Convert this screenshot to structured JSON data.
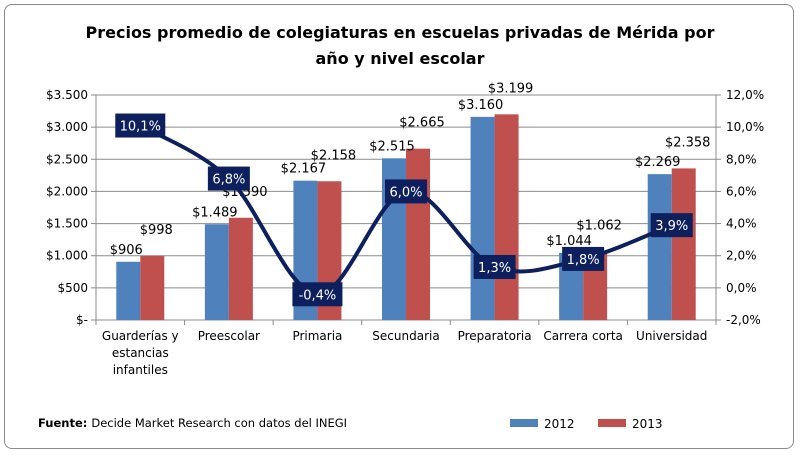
{
  "chart_data": {
    "type": "bar",
    "title": "Precios promedio de colegiaturas en escuelas privadas de Mérida por año y nivel escolar",
    "title_lines": [
      "Precios promedio de colegiaturas en escuelas privadas de Mérida por",
      "año y nivel escolar"
    ],
    "categories": [
      "Guarderías y estancias infantiles",
      "Preescolar",
      "Primaria",
      "Secundaria",
      "Preparatoria",
      "Carrera corta",
      "Universidad"
    ],
    "category_lines": [
      [
        "Guarderías y",
        "estancias",
        "infantiles"
      ],
      [
        "Preescolar"
      ],
      [
        "Primaria"
      ],
      [
        "Secundaria"
      ],
      [
        "Preparatoria"
      ],
      [
        "Carrera corta"
      ],
      [
        "Universidad"
      ]
    ],
    "series": [
      {
        "name": "2012",
        "type": "bar",
        "axis": "left",
        "color": "#4f81bd",
        "values": [
          906,
          1489,
          2167,
          2515,
          3160,
          1044,
          2269
        ],
        "labels": [
          "$906",
          "$1.489",
          "$2.167",
          "$2.515",
          "$3.160",
          "$1.044",
          "$2.269"
        ]
      },
      {
        "name": "2013",
        "type": "bar",
        "axis": "left",
        "color": "#c0504d",
        "values": [
          998,
          1590,
          2158,
          2665,
          3199,
          1062,
          2358
        ],
        "labels": [
          "$998",
          "$1.590",
          "$2.158",
          "$2.665",
          "$3.199",
          "$1.062",
          "$2.358"
        ]
      },
      {
        "type": "line",
        "axis": "right",
        "color": "#0d1f5c",
        "values": [
          10.1,
          6.8,
          -0.4,
          6.0,
          1.3,
          1.8,
          3.9
        ],
        "labels": [
          "10,1%",
          "6,8%",
          "-0,4%",
          "6,0%",
          "1,3%",
          "1,8%",
          "3,9%"
        ]
      }
    ],
    "ylim": [
      0,
      3500
    ],
    "yticks": [
      "$-",
      "$500",
      "$1.000",
      "$1.500",
      "$2.000",
      "$2.500",
      "$3.000",
      "$3.500"
    ],
    "y2lim": [
      -2,
      12
    ],
    "y2ticks": [
      "-2,0%",
      "0,0%",
      "2,0%",
      "4,0%",
      "6,0%",
      "8,0%",
      "10,0%",
      "12,0%"
    ],
    "grid": true,
    "legend": "bottom-right"
  },
  "footer": {
    "label": "Fuente:",
    "text": "Decide Market Research con datos del INEGI"
  }
}
